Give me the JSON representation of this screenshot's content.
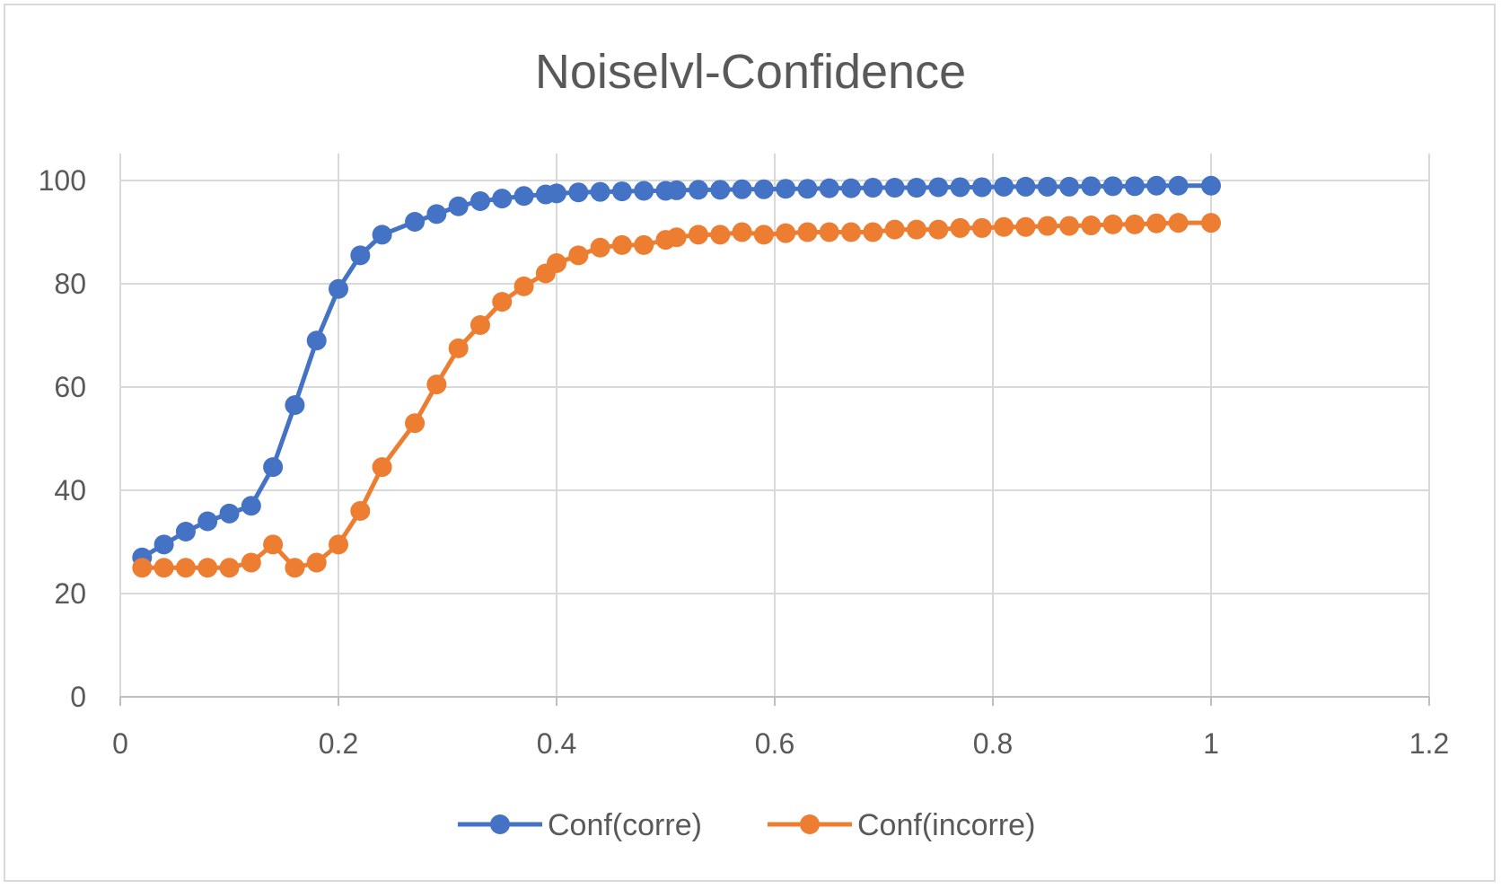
{
  "chart_data": {
    "type": "line",
    "title": "Noiselvl-Confidence",
    "xlabel": "",
    "ylabel": "",
    "xlim": [
      0,
      1.2
    ],
    "ylim": [
      0,
      100
    ],
    "x_ticks": [
      "0",
      "0.2",
      "0.4",
      "0.6",
      "0.8",
      "1",
      "1.2"
    ],
    "y_ticks": [
      "0",
      "20",
      "40",
      "60",
      "80",
      "100"
    ],
    "grid": true,
    "legend_position": "bottom",
    "markers": true,
    "series": [
      {
        "name": "Conf(corre)",
        "color": "#4472C4",
        "x": [
          0.02,
          0.04,
          0.06,
          0.08,
          0.1,
          0.12,
          0.14,
          0.16,
          0.18,
          0.2,
          0.22,
          0.24,
          0.27,
          0.29,
          0.31,
          0.33,
          0.35,
          0.37,
          0.39,
          0.4,
          0.42,
          0.44,
          0.46,
          0.48,
          0.5,
          0.51,
          0.53,
          0.55,
          0.57,
          0.59,
          0.61,
          0.63,
          0.65,
          0.67,
          0.69,
          0.71,
          0.73,
          0.75,
          0.77,
          0.79,
          0.81,
          0.83,
          0.85,
          0.87,
          0.89,
          0.91,
          0.93,
          0.95,
          0.97,
          1.0
        ],
        "values": [
          27,
          29.5,
          32,
          34,
          35.5,
          37,
          44.5,
          56.5,
          69,
          79,
          85.5,
          89.5,
          92,
          93.5,
          95,
          96,
          96.5,
          97,
          97.3,
          97.5,
          97.7,
          97.8,
          97.9,
          98,
          98,
          98.1,
          98.2,
          98.2,
          98.3,
          98.3,
          98.4,
          98.4,
          98.5,
          98.5,
          98.6,
          98.6,
          98.6,
          98.7,
          98.7,
          98.7,
          98.8,
          98.8,
          98.8,
          98.8,
          98.9,
          98.9,
          98.9,
          99,
          99,
          99
        ]
      },
      {
        "name": "Conf(incorre)",
        "color": "#ED7D31",
        "x": [
          0.02,
          0.04,
          0.06,
          0.08,
          0.1,
          0.12,
          0.14,
          0.16,
          0.18,
          0.2,
          0.22,
          0.24,
          0.27,
          0.29,
          0.31,
          0.33,
          0.35,
          0.37,
          0.39,
          0.4,
          0.42,
          0.44,
          0.46,
          0.48,
          0.5,
          0.51,
          0.53,
          0.55,
          0.57,
          0.59,
          0.61,
          0.63,
          0.65,
          0.67,
          0.69,
          0.71,
          0.73,
          0.75,
          0.77,
          0.79,
          0.81,
          0.83,
          0.85,
          0.87,
          0.89,
          0.91,
          0.93,
          0.95,
          0.97,
          1.0
        ],
        "values": [
          25,
          25,
          25,
          25,
          25,
          26,
          29.5,
          25,
          26,
          29.5,
          36,
          44.5,
          53,
          60.5,
          67.5,
          72,
          76.5,
          79.5,
          82,
          84,
          85.5,
          87,
          87.5,
          87.5,
          88.5,
          89,
          89.5,
          89.5,
          90,
          89.5,
          89.8,
          90,
          90,
          90,
          90,
          90.5,
          90.5,
          90.5,
          90.8,
          90.8,
          91,
          91,
          91.2,
          91.2,
          91.3,
          91.5,
          91.5,
          91.7,
          91.8,
          91.8
        ]
      }
    ]
  }
}
